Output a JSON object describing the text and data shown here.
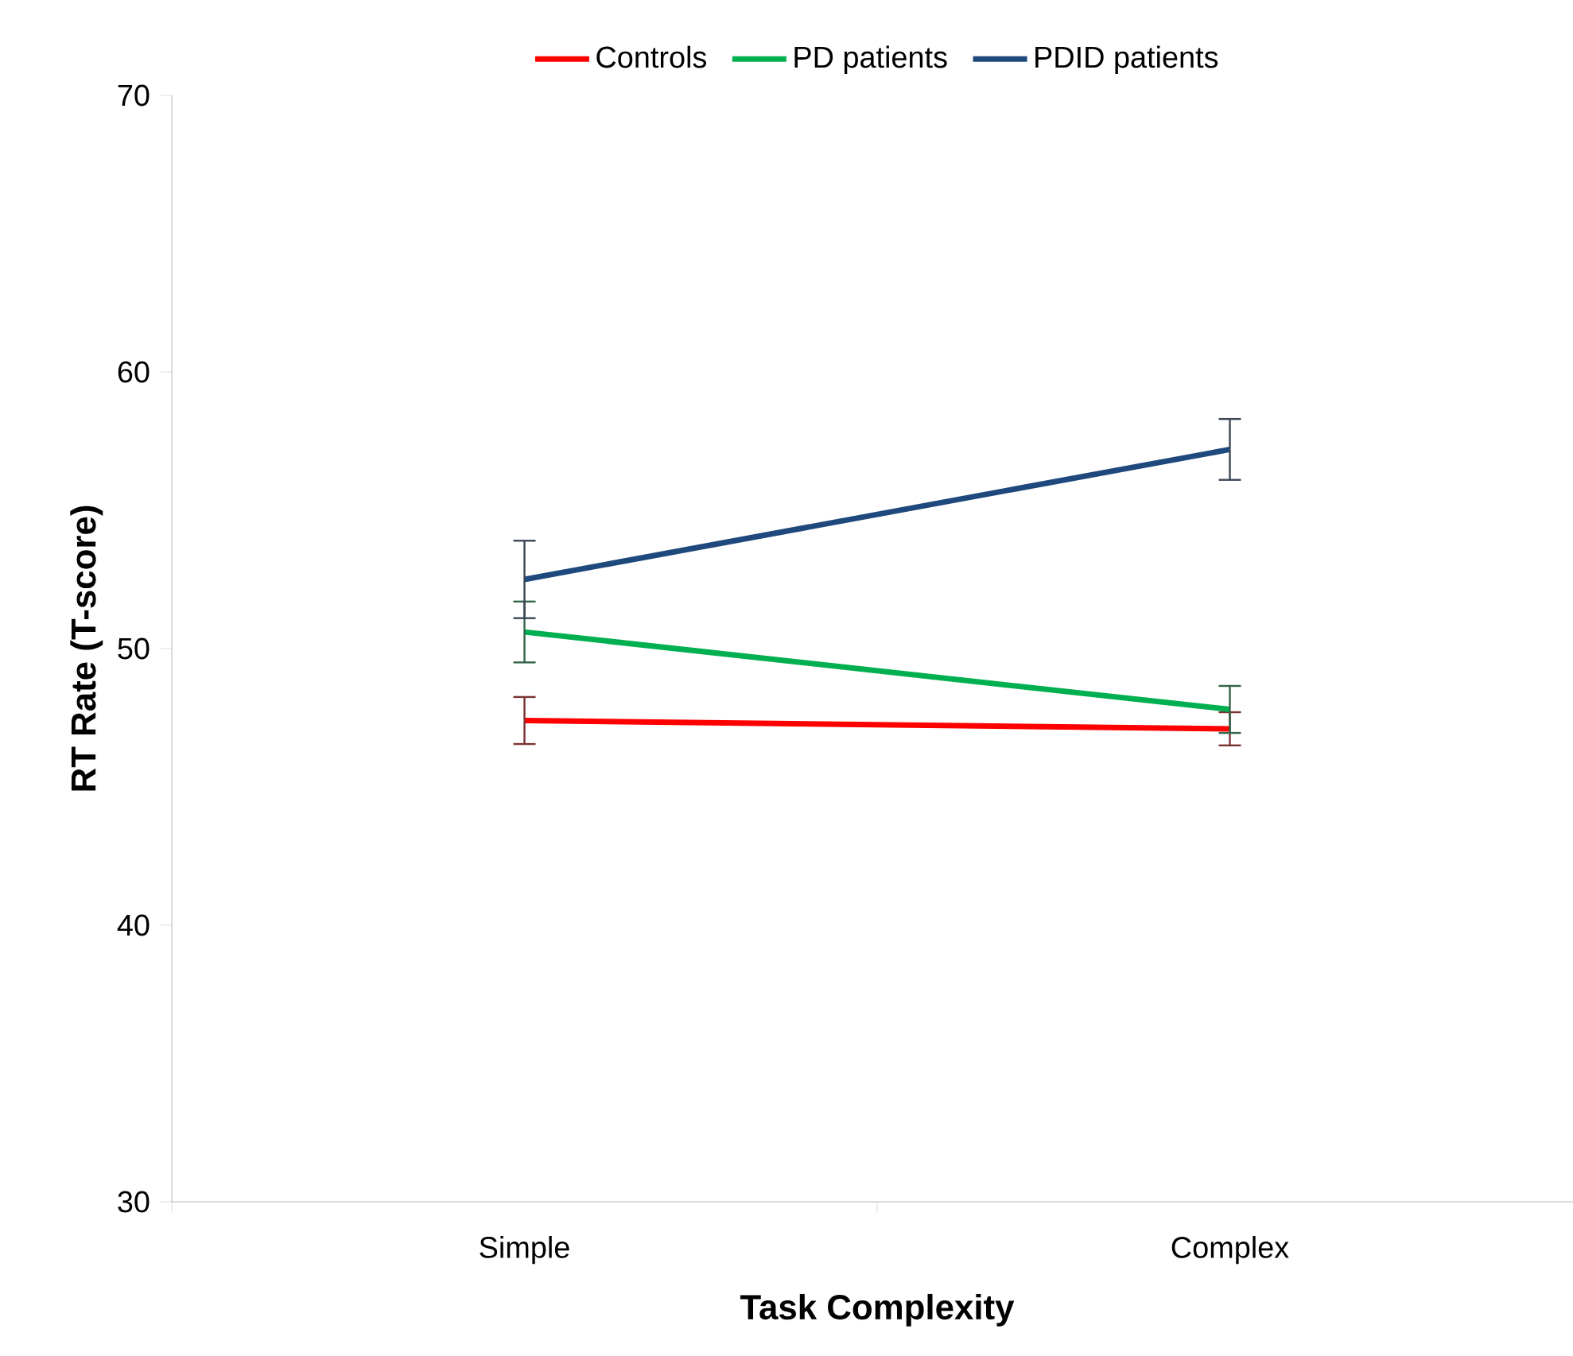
{
  "chart_data": {
    "type": "line",
    "xlabel": "Task Complexity",
    "ylabel": "RT Rate (T-score)",
    "categories": [
      "Simple",
      "Complex"
    ],
    "series": [
      {
        "name": "Controls",
        "color": "#ff0000",
        "values": [
          47.4,
          47.1
        ],
        "errors": [
          0.85,
          0.6
        ]
      },
      {
        "name": "PD patients",
        "color": "#00b050",
        "values": [
          50.6,
          47.8
        ],
        "errors": [
          1.1,
          0.85
        ]
      },
      {
        "name": "PDID patients",
        "color": "#1f497d",
        "values": [
          52.5,
          57.2
        ],
        "errors": [
          1.4,
          1.1
        ]
      }
    ],
    "ylim": [
      30,
      70
    ],
    "yticks": [
      30,
      40,
      50,
      60,
      70
    ],
    "grid": false,
    "legend": "top",
    "marker": "none",
    "line_style": "solid"
  }
}
